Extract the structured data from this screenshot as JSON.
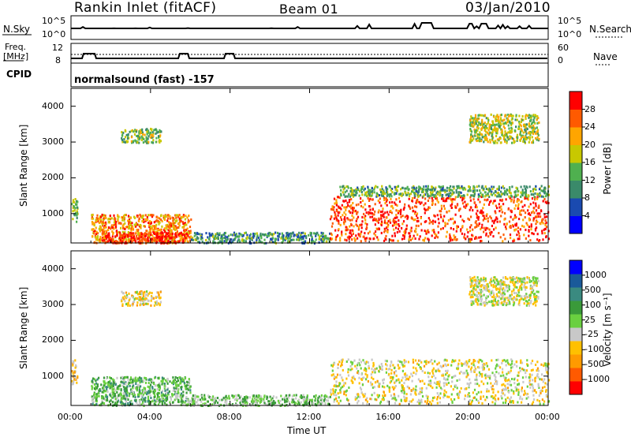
{
  "header": {
    "station": "Rankin Inlet (fitACF)",
    "beam": "Beam 01",
    "date": "03/Jan/2010"
  },
  "side_labels": {
    "nsky": "N.Sky",
    "freq": "Freq.",
    "freq_unit": "[MHz]",
    "cpid": "CPID",
    "nsearch": "N.Search",
    "nave": "Nave"
  },
  "noise_panel": {
    "left_ticks": [
      "10^5",
      "10^0"
    ],
    "right_ticks": [
      "10^5",
      "10^0"
    ]
  },
  "freq_panel": {
    "left_ticks": [
      "12",
      "8"
    ],
    "right_ticks": [
      "60",
      "0"
    ]
  },
  "cpid_text": "normalsound (fast) -157",
  "xlabel": "Time UT",
  "colors": {
    "power_scale": [
      "#0000ff",
      "#1a4ab0",
      "#3a8a6a",
      "#4fb04f",
      "#c8c800",
      "#ffa500",
      "#ff5a00",
      "#ff0000"
    ],
    "velocity_scale": [
      "#ff0000",
      "#ff5a00",
      "#ff9a00",
      "#ffc000",
      "#c8c8c8",
      "#6ad040",
      "#3a9a3a",
      "#3a8a80",
      "#1a5a9a",
      "#0000ff"
    ]
  },
  "chart_data": [
    {
      "type": "heatmap",
      "name": "power",
      "ylabel": "Slant Range [km]",
      "xlabel": "Time UT",
      "x_ticks": [
        "00:00",
        "04:00",
        "08:00",
        "12:00",
        "16:00",
        "20:00",
        "00:00"
      ],
      "y_ticks": [
        1000,
        2000,
        3000,
        4000
      ],
      "xlim": [
        0,
        24
      ],
      "ylim": [
        180,
        4500
      ],
      "colorbar": {
        "label": "Power [dB]",
        "ticks": [
          "4",
          "8",
          "12",
          "16",
          "20",
          "24",
          "28"
        ],
        "range": [
          0,
          30
        ]
      },
      "regions": [
        {
          "t": [
            0.0,
            0.3
          ],
          "r": [
            800,
            1500
          ],
          "v": 14
        },
        {
          "t": [
            1.0,
            6.0
          ],
          "r": [
            200,
            1000
          ],
          "v": 22
        },
        {
          "t": [
            1.5,
            5.8
          ],
          "r": [
            200,
            500
          ],
          "v": 28
        },
        {
          "t": [
            2.5,
            4.5
          ],
          "r": [
            3000,
            3400
          ],
          "v": 14
        },
        {
          "t": [
            6.0,
            13.0
          ],
          "r": [
            200,
            500
          ],
          "v": 10
        },
        {
          "t": [
            13.0,
            24.0
          ],
          "r": [
            250,
            1500
          ],
          "v": 26
        },
        {
          "t": [
            13.5,
            24.0
          ],
          "r": [
            1500,
            1800
          ],
          "v": 12
        },
        {
          "t": [
            20.0,
            23.5
          ],
          "r": [
            3000,
            3800
          ],
          "v": 16
        }
      ]
    },
    {
      "type": "heatmap",
      "name": "velocity",
      "ylabel": "Slant Range [km]",
      "xlabel": "Time UT",
      "x_ticks": [
        "00:00",
        "04:00",
        "08:00",
        "12:00",
        "16:00",
        "20:00",
        "00:00"
      ],
      "y_ticks": [
        1000,
        2000,
        3000,
        4000
      ],
      "xlim": [
        0,
        24
      ],
      "ylim": [
        180,
        4500
      ],
      "colorbar": {
        "label": "Velocity [m s⁻¹]",
        "ticks": [
          "1000",
          "500",
          "100",
          "25",
          "-25",
          "-100",
          "-500",
          "-1000"
        ],
        "range": [
          -1000,
          1000
        ]
      },
      "regions": [
        {
          "t": [
            0.0,
            0.3
          ],
          "r": [
            800,
            1500
          ],
          "v": -300
        },
        {
          "t": [
            1.0,
            6.0
          ],
          "r": [
            200,
            1000
          ],
          "v": 200
        },
        {
          "t": [
            2.5,
            4.5
          ],
          "r": [
            3000,
            3400
          ],
          "v": -200
        },
        {
          "t": [
            6.0,
            13.0
          ],
          "r": [
            200,
            500
          ],
          "v": 100
        },
        {
          "t": [
            13.0,
            24.0
          ],
          "r": [
            250,
            1500
          ],
          "v": -150
        },
        {
          "t": [
            20.0,
            23.5
          ],
          "r": [
            3000,
            3800
          ],
          "v": -100
        }
      ]
    }
  ]
}
